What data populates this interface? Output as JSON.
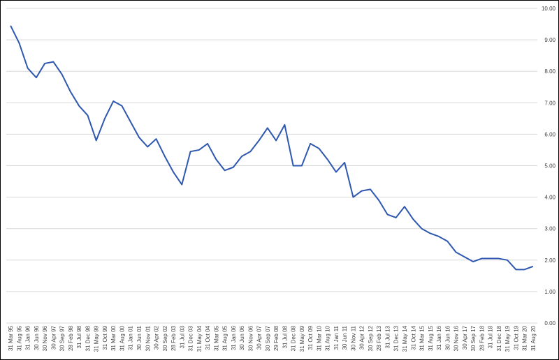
{
  "chart_data": {
    "type": "line",
    "categories": [
      "31 Mar 95",
      "31 Aug 95",
      "31 Jan 96",
      "30 Jun 96",
      "30 Nov 96",
      "30 Apr 97",
      "30 Sep 97",
      "28 Feb 98",
      "31 Jul 98",
      "31 Dec 98",
      "31 May 99",
      "31 Oct 99",
      "31 Mar 00",
      "31 Aug 00",
      "31 Jan 01",
      "30 Jun 01",
      "30 Nov 01",
      "30 Apr 02",
      "30 Sep 02",
      "28 Feb 03",
      "31 Jul 03",
      "31 Dec 03",
      "31 May 04",
      "31 Oct 04",
      "31 Mar 05",
      "31 Aug 05",
      "31 Jan 06",
      "30 Jun 06",
      "30 Nov 06",
      "30 Apr 07",
      "30 Sep 07",
      "29 Feb 08",
      "31 Jul 08",
      "31 Dec 08",
      "31 May 09",
      "31 Oct 09",
      "31 Mar 10",
      "31 Aug 10",
      "31 Jan 11",
      "30 Jun 11",
      "30 Nov 11",
      "30 Apr 12",
      "30 Sep 12",
      "28 Feb 13",
      "31 Jul 13",
      "31 Dec 13",
      "31 May 14",
      "31 Oct 14",
      "31 Mar 15",
      "31 Aug 15",
      "31 Jan 16",
      "30 Jun 16",
      "30 Nov 16",
      "30 Apr 17",
      "30 Sep 17",
      "28 Feb 18",
      "31 Jul 18",
      "31 Dec 18",
      "31 May 19",
      "31 Oct 19",
      "31 Mar 20",
      "31 Aug 20"
    ],
    "values": [
      9.45,
      8.9,
      8.1,
      7.8,
      8.25,
      8.3,
      7.9,
      7.35,
      6.9,
      6.6,
      5.8,
      6.5,
      7.05,
      6.9,
      6.4,
      5.9,
      5.6,
      5.85,
      5.3,
      4.8,
      4.4,
      5.45,
      5.5,
      5.7,
      5.2,
      4.85,
      4.95,
      5.3,
      5.45,
      5.8,
      6.2,
      5.8,
      6.3,
      5.0,
      5.0,
      5.7,
      5.55,
      5.2,
      4.8,
      5.1,
      4.0,
      4.2,
      4.25,
      3.9,
      3.45,
      3.35,
      3.7,
      3.3,
      3.0,
      2.85,
      2.75,
      2.6,
      2.25,
      2.1,
      1.95,
      2.05,
      2.05,
      2.05,
      2.0,
      1.7,
      1.7,
      1.8
    ],
    "color": "#2e57b0",
    "ylim": [
      0,
      10
    ],
    "yticks": [
      {
        "value": 0,
        "label": "0.00"
      },
      {
        "value": 1,
        "label": "1.00"
      },
      {
        "value": 2,
        "label": "2.00"
      },
      {
        "value": 3,
        "label": "3.00"
      },
      {
        "value": 4,
        "label": "4.00"
      },
      {
        "value": 5,
        "label": "5.00"
      },
      {
        "value": 6,
        "label": "6.00"
      },
      {
        "value": 7,
        "label": "7.00"
      },
      {
        "value": 8,
        "label": "8.00"
      },
      {
        "value": 9,
        "label": "9.00"
      },
      {
        "value": 10,
        "label": "10.00"
      }
    ],
    "grid": true
  }
}
